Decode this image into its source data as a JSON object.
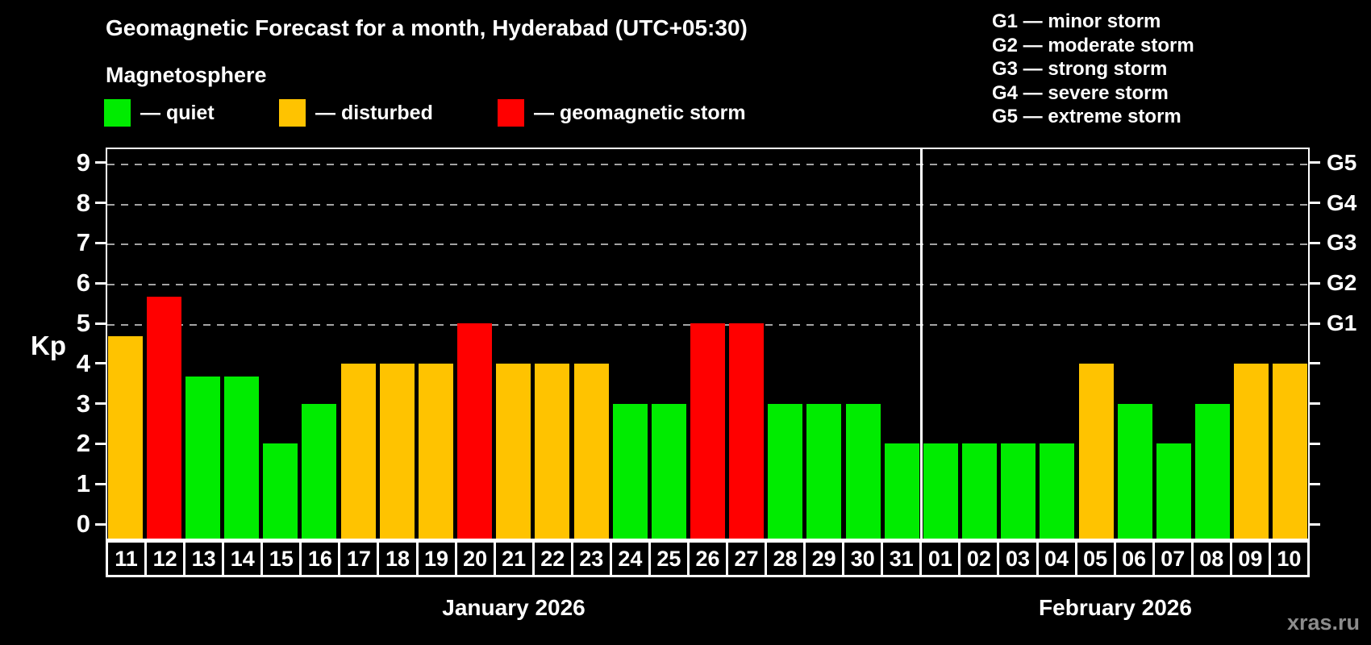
{
  "title": "Geomagnetic Forecast for a month, Hyderabad (UTC+05:30)",
  "subtitle": "Magnetosphere",
  "legend": {
    "items": [
      {
        "name": "quiet",
        "label": "— quiet",
        "color": "#00ec00"
      },
      {
        "name": "disturbed",
        "label": "— disturbed",
        "color": "#ffc300"
      },
      {
        "name": "storm",
        "label": "— geomagnetic storm",
        "color": "#ff0000"
      }
    ]
  },
  "g_legend": [
    {
      "code": "G1",
      "label": "G1 — minor storm"
    },
    {
      "code": "G2",
      "label": "G2 — moderate storm"
    },
    {
      "code": "G3",
      "label": "G3 — strong storm"
    },
    {
      "code": "G4",
      "label": "G4 — severe storm"
    },
    {
      "code": "G5",
      "label": "G5 — extreme storm"
    }
  ],
  "watermark": "xras.ru",
  "chart_data": {
    "type": "bar",
    "ylabel": "Kp",
    "ylim": [
      0,
      9
    ],
    "yticks": [
      0,
      1,
      2,
      3,
      4,
      5,
      6,
      7,
      8,
      9
    ],
    "gridlines_kp": [
      5,
      6,
      7,
      8,
      9
    ],
    "right_axis_labels": [
      {
        "label": "G1",
        "kp": 5
      },
      {
        "label": "G2",
        "kp": 6
      },
      {
        "label": "G3",
        "kp": 7
      },
      {
        "label": "G4",
        "kp": 8
      },
      {
        "label": "G5",
        "kp": 9
      }
    ],
    "categories": [
      "11",
      "12",
      "13",
      "14",
      "15",
      "16",
      "17",
      "18",
      "19",
      "20",
      "21",
      "22",
      "23",
      "24",
      "25",
      "26",
      "27",
      "28",
      "29",
      "30",
      "31",
      "01",
      "02",
      "03",
      "04",
      "05",
      "06",
      "07",
      "08",
      "09",
      "10"
    ],
    "values": [
      4.67,
      5.67,
      3.67,
      3.67,
      2,
      3,
      4,
      4,
      4,
      5,
      4,
      4,
      4,
      3,
      3,
      5,
      5,
      3,
      3,
      3,
      2,
      2,
      2,
      2,
      2,
      4,
      3,
      2,
      3,
      4,
      4
    ],
    "statuses": [
      "disturbed",
      "storm",
      "quiet",
      "quiet",
      "quiet",
      "quiet",
      "disturbed",
      "disturbed",
      "disturbed",
      "storm",
      "disturbed",
      "disturbed",
      "disturbed",
      "quiet",
      "quiet",
      "storm",
      "storm",
      "quiet",
      "quiet",
      "quiet",
      "quiet",
      "quiet",
      "quiet",
      "quiet",
      "quiet",
      "disturbed",
      "quiet",
      "quiet",
      "quiet",
      "disturbed",
      "disturbed"
    ],
    "colors": {
      "quiet": "#00ec00",
      "disturbed": "#ffc300",
      "storm": "#ff0000"
    },
    "months": [
      {
        "label": "January 2026",
        "count": 21
      },
      {
        "label": "February 2026",
        "count": 10
      }
    ],
    "legend_position": "top",
    "grid": "dashed-horizontal-G-levels-only"
  }
}
